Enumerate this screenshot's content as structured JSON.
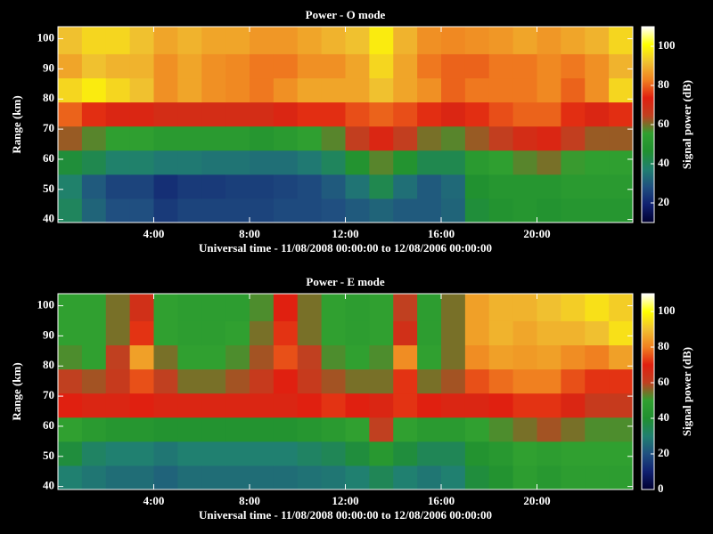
{
  "chart_data": [
    {
      "type": "heatmap",
      "title": "Power - O mode",
      "xlabel": "Universal time - 11/08/2008 00:00:00 to 12/08/2006 00:00:00",
      "ylabel": "Range (km)",
      "colorbar_label": "Signal power (dB)",
      "x": [
        0,
        1,
        2,
        3,
        4,
        5,
        6,
        7,
        8,
        9,
        10,
        11,
        12,
        13,
        14,
        15,
        16,
        17,
        18,
        19,
        20,
        21,
        22,
        23,
        24
      ],
      "y": [
        39,
        47,
        55,
        63,
        71,
        79,
        87,
        95,
        104
      ],
      "z": [
        [
          40,
          32,
          28,
          28,
          24,
          26,
          26,
          26,
          26,
          27,
          27,
          28,
          30,
          32,
          30,
          30,
          32,
          45,
          48,
          50,
          48,
          50,
          50,
          50
        ],
        [
          38,
          30,
          26,
          26,
          22,
          24,
          24,
          25,
          25,
          26,
          27,
          30,
          35,
          42,
          34,
          30,
          33,
          47,
          50,
          50,
          50,
          52,
          52,
          52
        ],
        [
          45,
          42,
          38,
          38,
          36,
          36,
          35,
          35,
          34,
          34,
          36,
          40,
          48,
          58,
          48,
          42,
          42,
          52,
          55,
          58,
          60,
          56,
          55,
          55
        ],
        [
          62,
          58,
          55,
          55,
          52,
          52,
          52,
          52,
          50,
          52,
          55,
          58,
          65,
          72,
          65,
          60,
          58,
          62,
          65,
          70,
          72,
          65,
          62,
          62
        ],
        [
          80,
          75,
          72,
          72,
          70,
          70,
          70,
          70,
          70,
          72,
          75,
          75,
          78,
          80,
          78,
          75,
          72,
          75,
          78,
          80,
          80,
          75,
          72,
          75
        ],
        [
          95,
          98,
          95,
          92,
          85,
          88,
          85,
          84,
          82,
          85,
          88,
          88,
          88,
          92,
          88,
          85,
          80,
          82,
          82,
          82,
          84,
          80,
          85,
          95
        ],
        [
          88,
          92,
          90,
          90,
          85,
          88,
          85,
          84,
          82,
          82,
          85,
          85,
          88,
          95,
          88,
          82,
          80,
          80,
          82,
          82,
          84,
          82,
          85,
          90
        ],
        [
          92,
          95,
          95,
          92,
          88,
          90,
          88,
          88,
          86,
          86,
          88,
          90,
          92,
          98,
          90,
          85,
          84,
          85,
          86,
          88,
          86,
          88,
          90,
          95
        ]
      ],
      "xlim": [
        0,
        24
      ],
      "xticks": [
        {
          "value": 4,
          "label": "4:00"
        },
        {
          "value": 8,
          "label": "8:00"
        },
        {
          "value": 12,
          "label": "12:00"
        },
        {
          "value": 16,
          "label": "16:00"
        },
        {
          "value": 20,
          "label": "20:00"
        }
      ],
      "ylim": [
        39,
        104
      ],
      "yticks": [
        40,
        50,
        60,
        70,
        80,
        90,
        100
      ],
      "zlim": [
        10,
        110
      ],
      "zticks": [
        20,
        40,
        60,
        80,
        100
      ],
      "colors": [
        "#000030",
        "#102070",
        "#205080",
        "#208070",
        "#209030",
        "#30a030",
        "#c04020",
        "#e02010",
        "#f08020",
        "#f0c030",
        "#ffff00",
        "#ffffff"
      ]
    },
    {
      "type": "heatmap",
      "title": "Power - E mode",
      "xlabel": "Universal time - 11/08/2008 00:00:00 to 12/08/2006 00:00:00",
      "ylabel": "Range (km)",
      "colorbar_label": "Signal power (dB)",
      "x": [
        0,
        1,
        2,
        3,
        4,
        5,
        6,
        7,
        8,
        9,
        10,
        11,
        12,
        13,
        14,
        15,
        16,
        17,
        18,
        19,
        20,
        21,
        22,
        23,
        24
      ],
      "y": [
        39,
        47,
        55,
        63,
        71,
        79,
        87,
        95,
        104
      ],
      "z": [
        [
          30,
          28,
          26,
          26,
          24,
          26,
          26,
          26,
          26,
          26,
          27,
          28,
          30,
          34,
          30,
          28,
          30,
          38,
          42,
          48,
          45,
          48,
          48,
          48
        ],
        [
          38,
          32,
          30,
          30,
          28,
          30,
          30,
          30,
          30,
          30,
          32,
          34,
          38,
          45,
          38,
          34,
          34,
          42,
          45,
          50,
          48,
          50,
          50,
          50
        ],
        [
          50,
          46,
          44,
          44,
          42,
          42,
          42,
          42,
          42,
          42,
          44,
          46,
          50,
          60,
          50,
          46,
          46,
          50,
          52,
          55,
          58,
          55,
          52,
          52
        ],
        [
          70,
          68,
          68,
          70,
          68,
          68,
          68,
          68,
          68,
          68,
          70,
          72,
          70,
          68,
          72,
          70,
          68,
          68,
          70,
          72,
          72,
          68,
          62,
          62
        ],
        [
          60,
          58,
          62,
          75,
          60,
          55,
          55,
          58,
          62,
          70,
          62,
          58,
          55,
          55,
          72,
          55,
          58,
          75,
          78,
          80,
          80,
          75,
          72,
          72
        ],
        [
          52,
          50,
          60,
          85,
          55,
          50,
          50,
          52,
          58,
          75,
          60,
          52,
          50,
          52,
          82,
          50,
          55,
          82,
          85,
          84,
          85,
          82,
          80,
          85
        ],
        [
          50,
          50,
          55,
          72,
          50,
          48,
          48,
          50,
          55,
          72,
          55,
          50,
          48,
          50,
          65,
          48,
          55,
          85,
          88,
          86,
          88,
          88,
          90,
          95
        ],
        [
          50,
          50,
          55,
          65,
          50,
          48,
          48,
          48,
          52,
          70,
          55,
          50,
          48,
          50,
          60,
          48,
          55,
          85,
          88,
          88,
          90,
          92,
          95,
          92
        ]
      ],
      "xlim": [
        0,
        24
      ],
      "xticks": [
        {
          "value": 4,
          "label": "4:00"
        },
        {
          "value": 8,
          "label": "8:00"
        },
        {
          "value": 12,
          "label": "12:00"
        },
        {
          "value": 16,
          "label": "16:00"
        },
        {
          "value": 20,
          "label": "20:00"
        }
      ],
      "ylim": [
        39,
        104
      ],
      "yticks": [
        40,
        50,
        60,
        70,
        80,
        90,
        100
      ],
      "zlim": [
        0,
        110
      ],
      "zticks": [
        0,
        20,
        40,
        60,
        80,
        100
      ],
      "colors": [
        "#000030",
        "#102070",
        "#205080",
        "#208070",
        "#209030",
        "#30a030",
        "#c04020",
        "#e02010",
        "#f08020",
        "#f0c030",
        "#ffff00",
        "#ffffff"
      ]
    }
  ]
}
